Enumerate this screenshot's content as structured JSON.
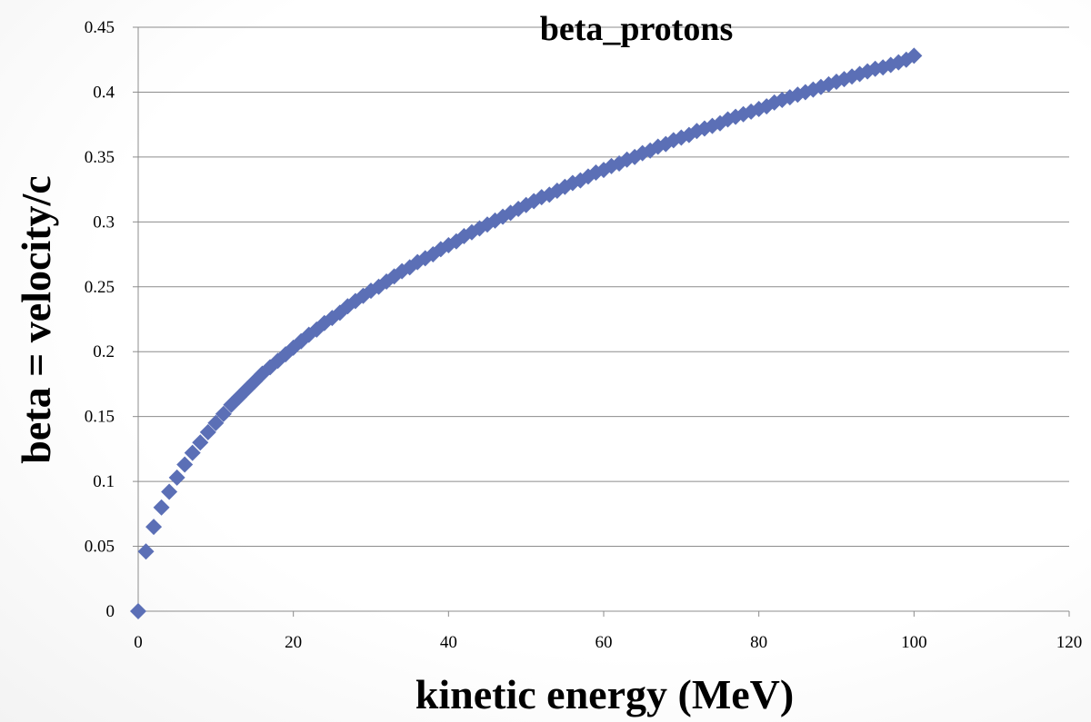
{
  "chart_data": {
    "type": "scatter",
    "title": "beta_protons",
    "xlabel": "kinetic energy (MeV)",
    "ylabel": "beta = velocity/c",
    "xlim": [
      0,
      120
    ],
    "ylim": [
      0,
      0.45
    ],
    "x_ticks": [
      "0",
      "20",
      "40",
      "60",
      "80",
      "100",
      "120"
    ],
    "y_ticks": [
      "0",
      "0.05",
      "0.1",
      "0.15",
      "0.2",
      "0.25",
      "0.3",
      "0.35",
      "0.4",
      "0.45"
    ],
    "grid": "horizontal",
    "marker": "diamond",
    "colors": {
      "marker": "#5b6fb6",
      "grid": "#8c8c8c",
      "axis": "#8c8c8c"
    },
    "series": [
      {
        "x": [
          0,
          1,
          2,
          3,
          4,
          5,
          6,
          7,
          8,
          9,
          10,
          11,
          12,
          13,
          14,
          15,
          16,
          17,
          18,
          19,
          20,
          21,
          22,
          23,
          24,
          25,
          26,
          27,
          28,
          29,
          30,
          31,
          32,
          33,
          34,
          35,
          36,
          37,
          38,
          39,
          40,
          41,
          42,
          43,
          44,
          45,
          46,
          47,
          48,
          49,
          50,
          51,
          52,
          53,
          54,
          55,
          56,
          57,
          58,
          59,
          60,
          61,
          62,
          63,
          64,
          65,
          66,
          67,
          68,
          69,
          70,
          71,
          72,
          73,
          74,
          75,
          76,
          77,
          78,
          79,
          80,
          81,
          82,
          83,
          84,
          85,
          86,
          87,
          88,
          89,
          90,
          91,
          92,
          93,
          94,
          95,
          96,
          97,
          98,
          99,
          100
        ],
        "y": [
          0,
          0.046,
          0.065,
          0.08,
          0.092,
          0.103,
          0.113,
          0.122,
          0.13,
          0.138,
          0.145,
          0.152,
          0.159,
          0.165,
          0.171,
          0.177,
          0.183,
          0.188,
          0.193,
          0.198,
          0.203,
          0.208,
          0.213,
          0.217,
          0.222,
          0.226,
          0.23,
          0.235,
          0.239,
          0.243,
          0.247,
          0.25,
          0.254,
          0.258,
          0.262,
          0.265,
          0.269,
          0.272,
          0.275,
          0.279,
          0.282,
          0.285,
          0.289,
          0.292,
          0.295,
          0.298,
          0.301,
          0.304,
          0.307,
          0.31,
          0.313,
          0.316,
          0.319,
          0.321,
          0.324,
          0.327,
          0.33,
          0.332,
          0.335,
          0.338,
          0.34,
          0.343,
          0.345,
          0.348,
          0.35,
          0.353,
          0.355,
          0.358,
          0.36,
          0.363,
          0.365,
          0.367,
          0.37,
          0.372,
          0.374,
          0.376,
          0.379,
          0.381,
          0.383,
          0.385,
          0.387,
          0.389,
          0.392,
          0.394,
          0.396,
          0.398,
          0.4,
          0.402,
          0.404,
          0.406,
          0.408,
          0.41,
          0.412,
          0.414,
          0.416,
          0.418,
          0.419,
          0.421,
          0.423,
          0.425,
          0.428
        ]
      }
    ]
  }
}
